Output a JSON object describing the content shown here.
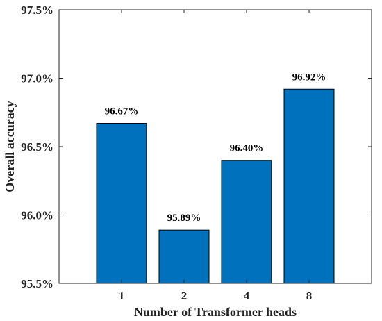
{
  "chart_data": {
    "type": "bar",
    "categories": [
      "1",
      "2",
      "4",
      "8"
    ],
    "values": [
      96.67,
      95.89,
      96.4,
      96.92
    ],
    "value_labels": [
      "96.67%",
      "95.89%",
      "96.40%",
      "96.92%"
    ],
    "xlabel": "Number of Transformer heads",
    "ylabel": "Overall accuracy",
    "ylim": [
      95.5,
      97.5
    ],
    "yticks": [
      95.5,
      96.0,
      96.5,
      97.0,
      97.5
    ],
    "ytick_labels": [
      "95.5%",
      "96.0%",
      "96.5%",
      "97.0%",
      "97.5%"
    ],
    "grid": false,
    "bar_color": "#0072BD",
    "bar_edge_color": "#000000"
  }
}
